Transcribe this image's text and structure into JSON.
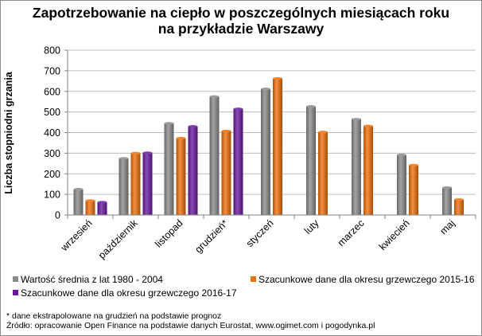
{
  "title_line1": "Zapotrzebowanie na ciepło w poszczególnych miesiącach roku",
  "title_line2": "na przykładzie Warszawy",
  "notes": {
    "footnote": "* dane ekstrapolowane na grudzień na podstawie prognoz",
    "source": "Źródło: opracowanie Open Finance na podstawie danych Eurostat, www.ogimet.com i pogodynka.pl"
  },
  "colors": {
    "series1": "#8a8a8a",
    "series2": "#f0700a",
    "series3": "#6a18a0",
    "grid": "#bdbdbd",
    "axis": "#808080"
  },
  "chart_data": {
    "type": "bar",
    "title": "Zapotrzebowanie na ciepło w poszczególnych miesiącach roku na przykładzie Warszawy",
    "ylabel": "Liczba stopniodni  grzania",
    "xlabel": "",
    "ylim": [
      0,
      800
    ],
    "yticks": [
      0,
      100,
      200,
      300,
      400,
      500,
      600,
      700,
      800
    ],
    "grid": true,
    "legend_position": "bottom",
    "categories": [
      "wrzesień",
      "październik",
      "listopad",
      "grudzień*",
      "styczeń",
      "luty",
      "marzec",
      "kwiecień",
      "maj"
    ],
    "series": [
      {
        "name": "Wartość średnia z lat 1980 - 2004",
        "values": [
          125,
          275,
          445,
          575,
          612,
          527,
          465,
          292,
          133
        ]
      },
      {
        "name": "Szacunkowe dane dla okresu grzewczego 2015-16",
        "values": [
          70,
          300,
          373,
          408,
          663,
          403,
          432,
          242,
          75
        ]
      },
      {
        "name": "Szacunkowe dane dla okresu grzewczego 2016-17",
        "values": [
          62,
          302,
          430,
          515,
          null,
          null,
          null,
          null,
          null
        ]
      }
    ]
  }
}
